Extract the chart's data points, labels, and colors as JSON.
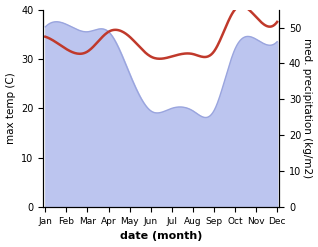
{
  "months": [
    "Jan",
    "Feb",
    "Mar",
    "Apr",
    "May",
    "Jun",
    "Jul",
    "Aug",
    "Sep",
    "Oct",
    "Nov",
    "Dec"
  ],
  "temp": [
    34.5,
    32.0,
    31.5,
    35.5,
    34.5,
    30.5,
    30.5,
    31.0,
    31.5,
    40.0,
    38.5,
    37.5
  ],
  "precip_left_scale": [
    36.5,
    37.0,
    35.5,
    35.5,
    27.0,
    19.5,
    20.0,
    19.5,
    19.5,
    32.0,
    34.0,
    33.5
  ],
  "temp_color": "#c0392b",
  "precip_fill_color": "#bcc5ef",
  "precip_line_color": "#9aa5de",
  "ylim_left": [
    0,
    40
  ],
  "ylim_right": [
    0,
    55
  ],
  "yticks_left": [
    0,
    10,
    20,
    30,
    40
  ],
  "yticks_right": [
    0,
    10,
    20,
    30,
    40,
    50
  ],
  "xlabel": "date (month)",
  "ylabel_left": "max temp (C)",
  "ylabel_right": "med. precipitation (kg/m2)",
  "bg_color": "#ffffff",
  "xlabel_fontsize": 8,
  "ylabel_fontsize": 7.5,
  "tick_fontsize": 7
}
